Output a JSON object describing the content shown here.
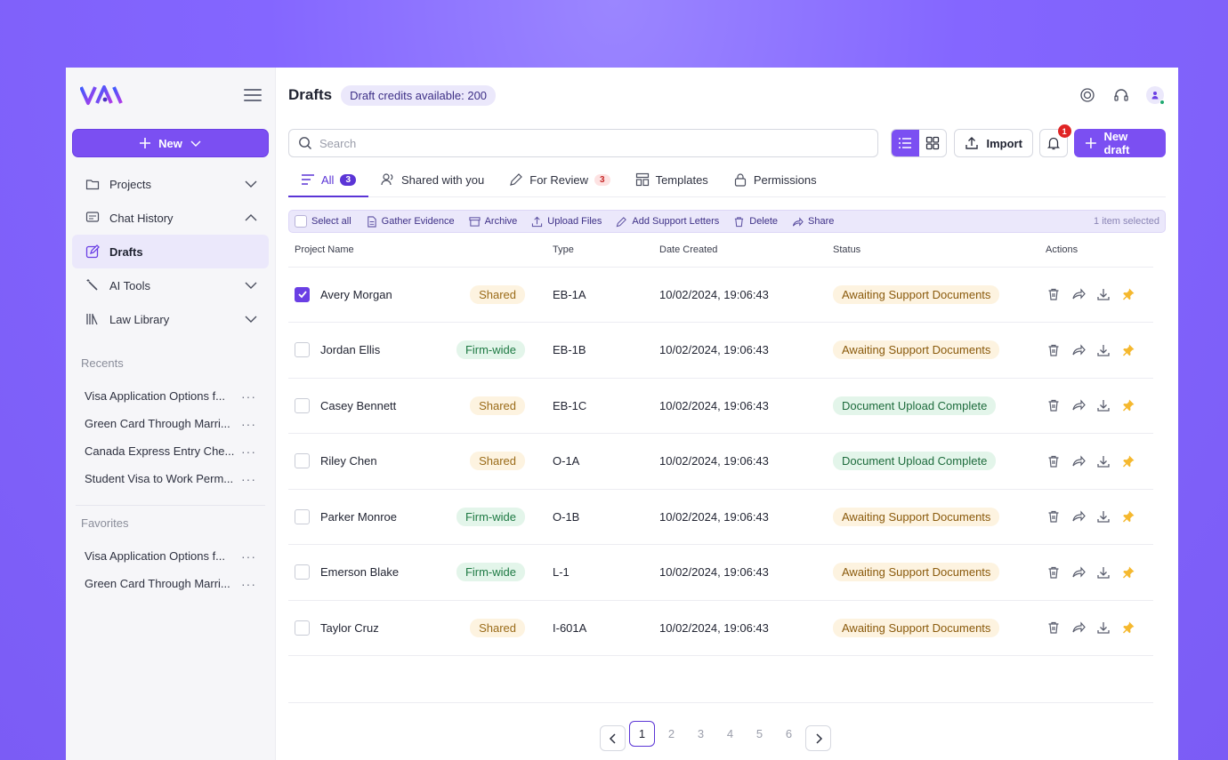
{
  "sidebar": {
    "new_label": "New",
    "nav": [
      {
        "label": "Projects",
        "icon": "folder-icon",
        "chevron": "down"
      },
      {
        "label": "Chat History",
        "icon": "chat-icon",
        "chevron": "up"
      },
      {
        "label": "Drafts",
        "icon": "edit-icon",
        "active": true
      },
      {
        "label": "AI Tools",
        "icon": "magic-wand-icon",
        "chevron": "down"
      },
      {
        "label": "Law Library",
        "icon": "library-icon",
        "chevron": "down"
      }
    ],
    "recents_title": "Recents",
    "recents": [
      "Visa Application Options f...",
      "Green Card Through Marri...",
      "Canada Express Entry Che...",
      "Student Visa to Work Perm..."
    ],
    "favorites_title": "Favorites",
    "favorites": [
      "Visa Application Options f...",
      "Green Card Through Marri..."
    ],
    "more_label": "···"
  },
  "header": {
    "title": "Drafts",
    "credits": "Draft credits available: 200"
  },
  "toolbar": {
    "search_placeholder": "Search",
    "import_label": "Import",
    "notification_count": "1",
    "new_draft_label": "New draft"
  },
  "tabs": [
    {
      "label": "All",
      "count": "3",
      "active": true
    },
    {
      "label": "Shared with you"
    },
    {
      "label": "For Review",
      "count": "3"
    },
    {
      "label": "Templates"
    },
    {
      "label": "Permissions"
    }
  ],
  "bulk": {
    "select_all": "Select all",
    "gather": "Gather Evidence",
    "archive": "Archive",
    "upload": "Upload Files",
    "support": "Add Support Letters",
    "delete": "Delete",
    "share": "Share",
    "selected": "1 item selected"
  },
  "table": {
    "headers": [
      "Project Name",
      "Type",
      "Date Created",
      "Status",
      "Actions"
    ],
    "rows": [
      {
        "name": "Avery Morgan",
        "tag": "Shared",
        "type": "EB-1A",
        "date": "10/02/2024, 19:06:43",
        "status": "Awaiting Support Documents",
        "checked": true
      },
      {
        "name": "Jordan Ellis",
        "tag": "Firm-wide",
        "type": "EB-1B",
        "date": "10/02/2024, 19:06:43",
        "status": "Awaiting Support Documents",
        "checked": false
      },
      {
        "name": "Casey Bennett",
        "tag": "Shared",
        "type": "EB-1C",
        "date": "10/02/2024, 19:06:43",
        "status": "Document Upload Complete",
        "checked": false
      },
      {
        "name": "Riley Chen",
        "tag": "Shared",
        "type": "O-1A",
        "date": "10/02/2024, 19:06:43",
        "status": "Document Upload Complete",
        "checked": false
      },
      {
        "name": "Parker Monroe",
        "tag": "Firm-wide",
        "type": "O-1B",
        "date": "10/02/2024, 19:06:43",
        "status": "Awaiting Support Documents",
        "checked": false
      },
      {
        "name": "Emerson Blake",
        "tag": "Firm-wide",
        "type": "L-1",
        "date": "10/02/2024, 19:06:43",
        "status": "Awaiting Support Documents",
        "checked": false
      },
      {
        "name": "Taylor Cruz",
        "tag": "Shared",
        "type": "I-601A",
        "date": "10/02/2024, 19:06:43",
        "status": "Awaiting Support Documents",
        "checked": false
      }
    ]
  },
  "pagination": {
    "pages": [
      "1",
      "2",
      "3",
      "4",
      "5",
      "6"
    ],
    "current": "1"
  },
  "colors": {
    "accent": "#7b4ff2",
    "shared_bg": "#fdf3e0",
    "firm_bg": "#e3f5ea"
  }
}
